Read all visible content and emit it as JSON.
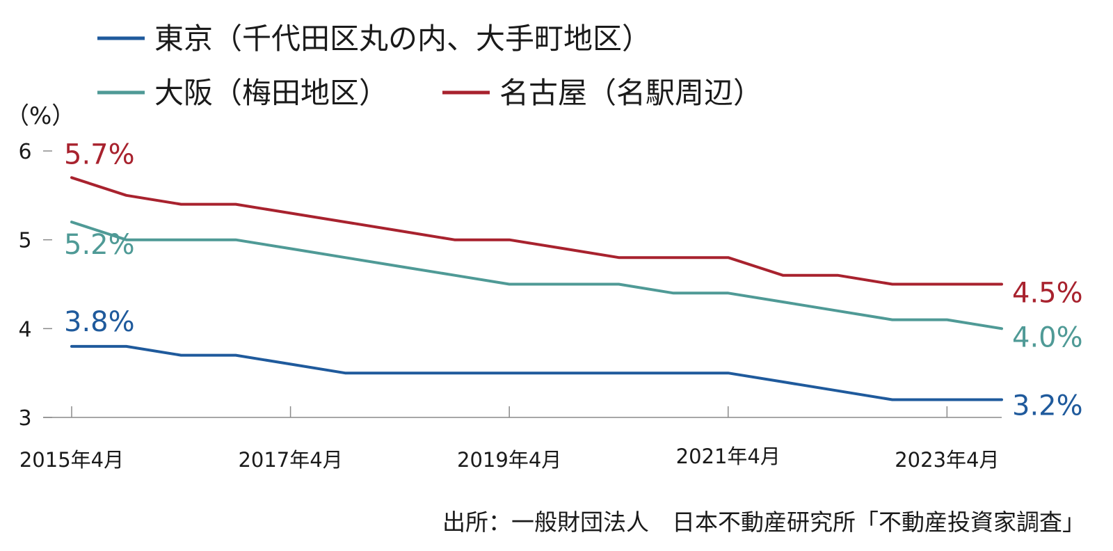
{
  "chart_data": {
    "type": "line",
    "title": "",
    "xlabel": "",
    "ylabel": "（%）",
    "ylim": [
      3,
      6
    ],
    "yticks": [
      3,
      4,
      5,
      6
    ],
    "x": [
      2015.25,
      2015.75,
      2016.25,
      2016.75,
      2017.25,
      2017.75,
      2018.25,
      2018.75,
      2019.25,
      2019.75,
      2020.25,
      2020.75,
      2021.25,
      2021.75,
      2022.25,
      2022.75,
      2023.25,
      2023.75
    ],
    "xticks": [
      {
        "value": 2015.25,
        "label": "2015年4月"
      },
      {
        "value": 2017.25,
        "label": "2017年4月"
      },
      {
        "value": 2019.25,
        "label": "2019年4月"
      },
      {
        "value": 2021.25,
        "label": "2021年4月"
      },
      {
        "value": 2023.25,
        "label": "2023年4月"
      }
    ],
    "series": [
      {
        "name": "東京（千代田区丸の内、大手町地区）",
        "color": "#1f5a9c",
        "values": [
          3.8,
          3.8,
          3.7,
          3.7,
          3.6,
          3.5,
          3.5,
          3.5,
          3.5,
          3.5,
          3.5,
          3.5,
          3.5,
          3.4,
          3.3,
          3.2,
          3.2,
          3.2
        ],
        "start_label": "3.8%",
        "end_label": "3.2%"
      },
      {
        "name": "大阪（梅田地区）",
        "color": "#4f9a96",
        "values": [
          5.2,
          5.0,
          5.0,
          5.0,
          4.9,
          4.8,
          4.7,
          4.6,
          4.5,
          4.5,
          4.5,
          4.4,
          4.4,
          4.3,
          4.2,
          4.1,
          4.1,
          4.0
        ],
        "start_label": "5.2%",
        "end_label": "4.0%"
      },
      {
        "name": "名古屋（名駅周辺）",
        "color": "#a8222e",
        "values": [
          5.7,
          5.5,
          5.4,
          5.4,
          5.3,
          5.2,
          5.1,
          5.0,
          5.0,
          4.9,
          4.8,
          4.8,
          4.8,
          4.6,
          4.6,
          4.5,
          4.5,
          4.5
        ],
        "start_label": "5.7%",
        "end_label": "4.5%"
      }
    ],
    "grid": false,
    "legend_position": "top-left",
    "source": "出所：一般財団法人　日本不動産研究所「不動産投資家調査」"
  }
}
